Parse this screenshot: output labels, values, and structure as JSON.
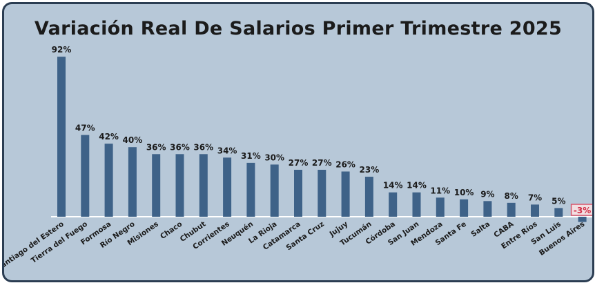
{
  "chart_data": {
    "type": "bar",
    "title": "Variación Real De Salarios Primer Trimestre 2025",
    "categories": [
      "Santiago del Estero",
      "Tierra del Fuego",
      "Formosa",
      "Río Negro",
      "Misiones",
      "Chaco",
      "Chubut",
      "Corrientes",
      "Neuquén",
      "La Rioja",
      "Catamarca",
      "Santa Cruz",
      "Jujuy",
      "Tucumán",
      "Córdoba",
      "San Juan",
      "Mendoza",
      "Santa Fe",
      "Salta",
      "CABA",
      "Entre Ríos",
      "San Luis",
      "Buenos Aires"
    ],
    "values": [
      92,
      47,
      42,
      40,
      36,
      36,
      36,
      34,
      31,
      30,
      27,
      27,
      26,
      23,
      14,
      14,
      11,
      10,
      9,
      8,
      7,
      5,
      -3
    ],
    "value_labels": [
      "92%",
      "47%",
      "42%",
      "40%",
      "36%",
      "36%",
      "36%",
      "34%",
      "31%",
      "30%",
      "27%",
      "27%",
      "26%",
      "23%",
      "14%",
      "14%",
      "11%",
      "10%",
      "9%",
      "8%",
      "7%",
      "5%",
      "-3%"
    ],
    "ylim": [
      -3,
      92
    ],
    "grid": false,
    "xlabel": "",
    "ylabel": ""
  },
  "colors": {
    "background": "#b7c8d8",
    "border": "#2b3d52",
    "bar": "#3e6288",
    "negative_highlight": "#d12c45"
  }
}
